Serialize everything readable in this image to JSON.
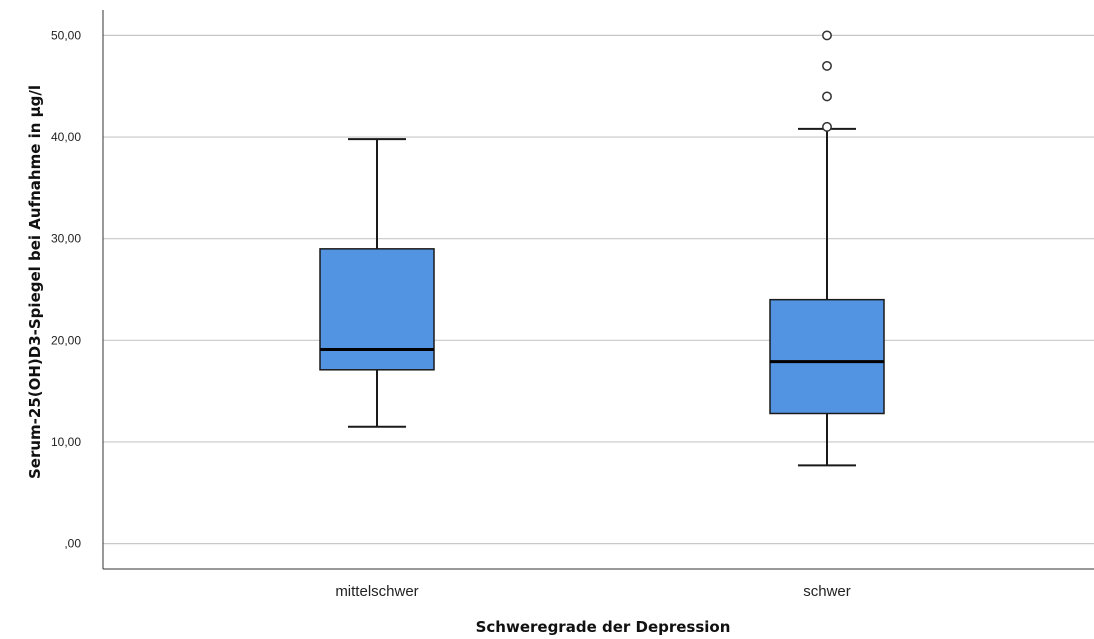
{
  "chart_data": {
    "type": "boxplot",
    "title": "",
    "xlabel": "Schweregrade der Depression",
    "ylabel": "Serum-25(OH)D3-Spiegel bei Aufnahme in µg/l",
    "ylim": [
      -2.5,
      52.5
    ],
    "yticks": [
      0,
      10,
      20,
      30,
      40,
      50
    ],
    "ytick_labels": [
      ",00",
      "10,00",
      "20,00",
      "30,00",
      "40,00",
      "50,00"
    ],
    "grid": "horizontal",
    "categories": [
      "mittelschwer",
      "schwer"
    ],
    "boxes": [
      {
        "category": "mittelschwer",
        "whisker_low": 11.5,
        "q1": 17.1,
        "median": 19.1,
        "q3": 29.0,
        "whisker_high": 39.8,
        "outliers": []
      },
      {
        "category": "schwer",
        "whisker_low": 7.7,
        "q1": 12.8,
        "median": 17.9,
        "q3": 24.0,
        "whisker_high": 40.8,
        "outliers": [
          41.0,
          44.0,
          47.0,
          50.0
        ]
      }
    ],
    "colors": {
      "box_fill": "#5294e2",
      "line": "#1a1a1a",
      "grid": "#c8c8c8"
    }
  }
}
